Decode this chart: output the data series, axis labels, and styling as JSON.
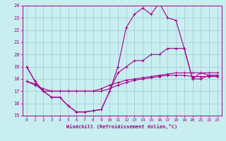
{
  "xlabel": "Windchill (Refroidissement éolien,°C)",
  "background_color": "#c8eef0",
  "grid_color": "#a0c8d0",
  "line_color": "#a0008c",
  "xlim": [
    -0.5,
    23.5
  ],
  "ylim": [
    15,
    24
  ],
  "yticks": [
    15,
    16,
    17,
    18,
    19,
    20,
    21,
    22,
    23,
    24
  ],
  "xticks": [
    0,
    1,
    2,
    3,
    4,
    5,
    6,
    7,
    8,
    9,
    10,
    11,
    12,
    13,
    14,
    15,
    16,
    17,
    18,
    19,
    20,
    21,
    22,
    23
  ],
  "lines": [
    {
      "x": [
        0,
        1,
        2,
        3,
        4,
        5,
        6,
        7,
        8,
        9,
        10,
        11,
        12,
        13,
        14,
        15,
        16,
        17,
        18,
        19,
        20,
        21,
        22,
        23
      ],
      "y": [
        19.0,
        17.8,
        17.0,
        16.5,
        16.5,
        15.8,
        15.3,
        15.3,
        15.4,
        15.5,
        17.0,
        19.0,
        22.2,
        23.3,
        23.8,
        23.3,
        24.2,
        23.0,
        22.8,
        20.5,
        18.0,
        18.5,
        18.3,
        18.3
      ]
    },
    {
      "x": [
        0,
        1,
        2,
        3,
        4,
        5,
        6,
        7,
        8,
        9,
        10,
        11,
        12,
        13,
        14,
        15,
        16,
        17,
        18,
        19,
        20,
        21,
        22,
        23
      ],
      "y": [
        19.0,
        17.8,
        17.0,
        16.5,
        16.5,
        15.8,
        15.3,
        15.3,
        15.4,
        15.5,
        17.0,
        18.5,
        19.0,
        19.5,
        19.5,
        20.0,
        20.0,
        20.5,
        20.5,
        20.5,
        18.0,
        18.0,
        18.3,
        18.3
      ]
    },
    {
      "x": [
        0,
        1,
        2,
        3,
        4,
        5,
        6,
        7,
        8,
        9,
        10,
        11,
        12,
        13,
        14,
        15,
        16,
        17,
        18,
        19,
        20,
        21,
        22,
        23
      ],
      "y": [
        17.8,
        17.6,
        17.0,
        17.0,
        17.0,
        17.0,
        17.0,
        17.0,
        17.0,
        17.2,
        17.5,
        17.7,
        17.9,
        18.0,
        18.1,
        18.2,
        18.3,
        18.4,
        18.5,
        18.5,
        18.5,
        18.5,
        18.5,
        18.5
      ]
    },
    {
      "x": [
        0,
        1,
        2,
        3,
        4,
        5,
        6,
        7,
        8,
        9,
        10,
        11,
        12,
        13,
        14,
        15,
        16,
        17,
        18,
        19,
        20,
        21,
        22,
        23
      ],
      "y": [
        17.8,
        17.5,
        17.2,
        17.0,
        17.0,
        17.0,
        17.0,
        17.0,
        17.0,
        17.0,
        17.2,
        17.5,
        17.7,
        17.9,
        18.0,
        18.1,
        18.2,
        18.3,
        18.3,
        18.3,
        18.2,
        18.2,
        18.2,
        18.2
      ]
    }
  ]
}
